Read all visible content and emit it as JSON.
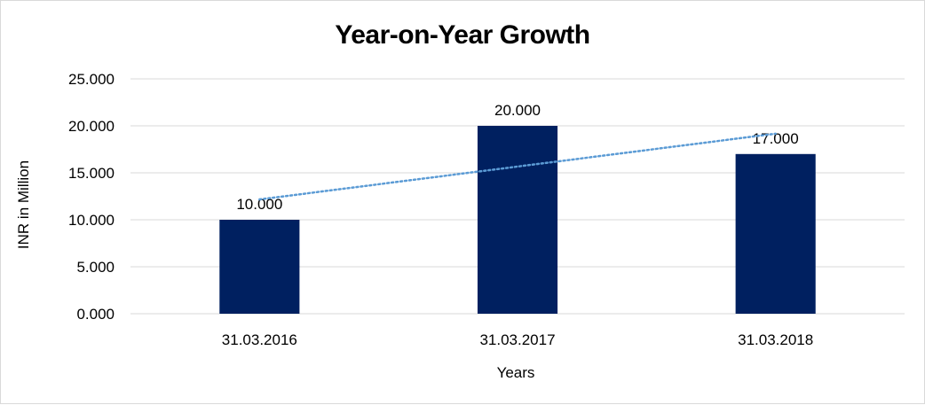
{
  "chart_data": {
    "type": "bar",
    "title": "Year-on-Year Growth",
    "xlabel": "Years",
    "ylabel": "INR in Million",
    "categories": [
      "31.03.2016",
      "31.03.2017",
      "31.03.2018"
    ],
    "values": [
      10,
      20,
      17
    ],
    "value_labels": [
      "10.000",
      "20.000",
      "17.000"
    ],
    "yticks": [
      0,
      5,
      10,
      15,
      20,
      25
    ],
    "ytick_labels": [
      "0.000",
      "5.000",
      "10.000",
      "15.000",
      "20.000",
      "25.000"
    ],
    "ylim": [
      0,
      25
    ],
    "grid": true,
    "legend": "none",
    "trendline": {
      "type": "linear",
      "style": "dotted",
      "color": "#5B9BD5"
    },
    "bar_color": "#002060",
    "gridline_color": "#d9d9d9"
  }
}
